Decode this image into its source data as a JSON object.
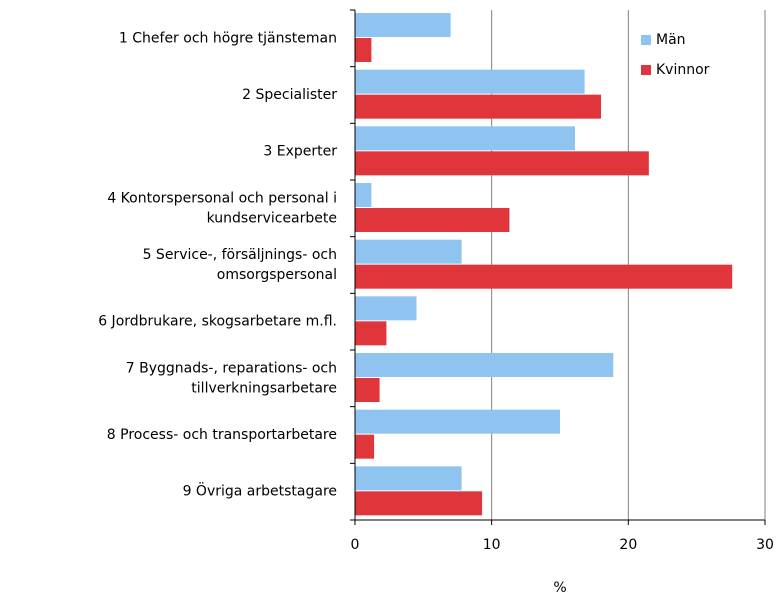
{
  "chart_data": {
    "type": "barh",
    "categories": [
      "1 Chefer och högre tjänsteman",
      "2 Specialister",
      "3 Experter",
      "4 Kontorspersonal och personal i\nkundservicearbete",
      "5 Service-, försäljnings- och\nomsorgspersonal",
      "6 Jordbrukare, skogsarbetare m.fl.",
      "7 Byggnads-, reparations- och\ntillverkningsarbetare",
      "8 Process- och transportarbetare",
      "9 Övriga arbetstagare"
    ],
    "series": [
      {
        "name": "Män",
        "color": "#8fc4f0",
        "values": [
          7.0,
          16.8,
          16.1,
          1.2,
          7.8,
          4.5,
          18.9,
          15.0,
          7.8
        ]
      },
      {
        "name": "Kvinnor",
        "color": "#e0353a",
        "values": [
          1.2,
          18.0,
          21.5,
          11.3,
          27.6,
          2.3,
          1.8,
          1.4,
          9.3
        ]
      }
    ],
    "xlabel": "%",
    "xlim": [
      0,
      30
    ],
    "xticks": [
      0,
      10,
      20,
      30
    ],
    "grid": true,
    "legend": "upper right"
  }
}
